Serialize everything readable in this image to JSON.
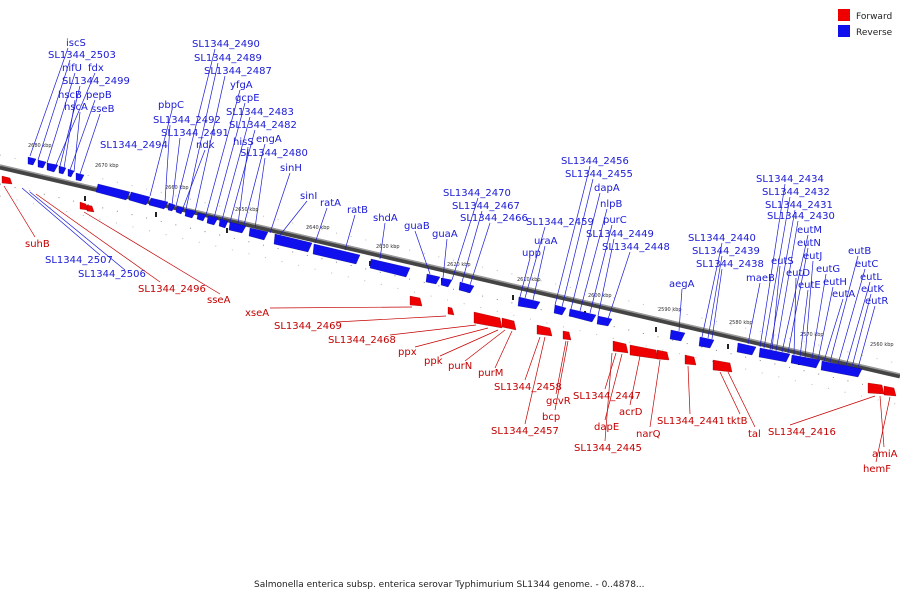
{
  "legend": {
    "forward_label": "Forward",
    "reverse_label": "Reverse",
    "forward_color": "#ee0000",
    "reverse_color": "#1010ee"
  },
  "caption": "Salmonella enterica subsp. enterica serovar Typhimurium SL1344 genome. - 0..4878...",
  "axis_unit": "kbp",
  "ticks": [
    2680,
    2670,
    2660,
    2650,
    2640,
    2630,
    2620,
    2610,
    2600,
    2590,
    2580,
    2570,
    2560
  ],
  "reverse_genes": [
    "iscS",
    "SL1344_2503",
    "nifU",
    "fdx",
    "SL1344_2499",
    "hscB",
    "pepB",
    "hscA",
    "sseB",
    "pbpC",
    "SL1344_2494",
    "SL1344_2492",
    "SL1344_2491",
    "ndk",
    "SL1344_2490",
    "SL1344_2489",
    "SL1344_2487",
    "yfgA",
    "gcpE",
    "SL1344_2483",
    "SL1344_2482",
    "hisS",
    "engA",
    "SL1344_2480",
    "sinH",
    "sinI",
    "ratA",
    "ratB",
    "shdA",
    "guaB",
    "guaA",
    "SL1344_2470",
    "SL1344_2467",
    "SL1344_2466",
    "SL1344_2459",
    "uraA",
    "upp",
    "SL1344_2456",
    "SL1344_2455",
    "dapA",
    "nlpB",
    "purC",
    "SL1344_2449",
    "SL1344_2448",
    "aegA",
    "SL1344_2440",
    "SL1344_2439",
    "SL1344_2438",
    "maeB",
    "SL1344_2434",
    "SL1344_2432",
    "SL1344_2431",
    "SL1344_2430",
    "eutM",
    "eutN",
    "eutS",
    "eutD",
    "eutE",
    "eutJ",
    "eutG",
    "eutH",
    "eutA",
    "eutB",
    "eutC",
    "eutL",
    "eutK",
    "eutR",
    "SL1344_2507",
    "SL1344_2506"
  ],
  "forward_genes": [
    "suhB",
    "SL1344_2496",
    "sseA",
    "xseA",
    "SL1344_2469",
    "SL1344_2468",
    "ppx",
    "ppk",
    "purN",
    "purM",
    "SL1344_2458",
    "gcvR",
    "bcp",
    "SL1344_2457",
    "SL1344_2447",
    "acrD",
    "dapE",
    "SL1344_2445",
    "narQ",
    "SL1344_2441",
    "tktB",
    "tal",
    "SL1344_2416",
    "amiA",
    "hemF"
  ]
}
